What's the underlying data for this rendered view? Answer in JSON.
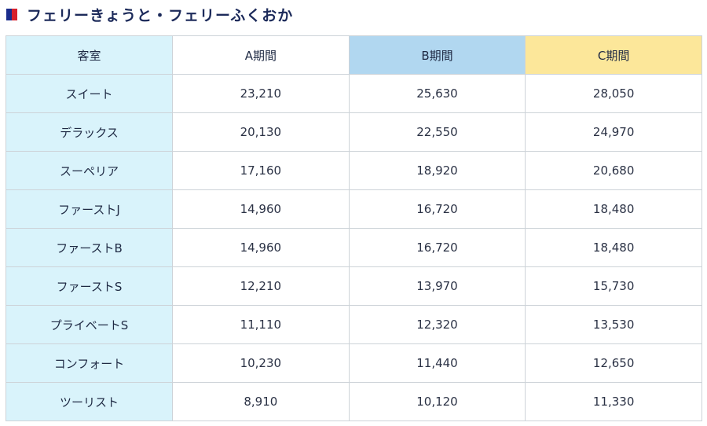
{
  "heading": {
    "title": "フェリーきょうと・フェリーふくおか"
  },
  "colors": {
    "accent_blue": "#1a2c8c",
    "accent_red": "#d8202c",
    "room_bg": "#d9f3fb",
    "b_bg": "#b1d7f0",
    "c_bg": "#fce79a"
  },
  "table": {
    "headers": {
      "room": "客室",
      "a": "A期間",
      "b": "B期間",
      "c": "C期間"
    },
    "rows": [
      {
        "room": "スイート",
        "a": "23,210",
        "b": "25,630",
        "c": "28,050"
      },
      {
        "room": "デラックス",
        "a": "20,130",
        "b": "22,550",
        "c": "24,970"
      },
      {
        "room": "スーペリア",
        "a": "17,160",
        "b": "18,920",
        "c": "20,680"
      },
      {
        "room": "ファーストJ",
        "a": "14,960",
        "b": "16,720",
        "c": "18,480"
      },
      {
        "room": "ファーストB",
        "a": "14,960",
        "b": "16,720",
        "c": "18,480"
      },
      {
        "room": "ファーストS",
        "a": "12,210",
        "b": "13,970",
        "c": "15,730"
      },
      {
        "room": "プライベートS",
        "a": "11,110",
        "b": "12,320",
        "c": "13,530"
      },
      {
        "room": "コンフォート",
        "a": "10,230",
        "b": "11,440",
        "c": "12,650"
      },
      {
        "room": "ツーリスト",
        "a": "8,910",
        "b": "10,120",
        "c": "11,330"
      }
    ]
  }
}
